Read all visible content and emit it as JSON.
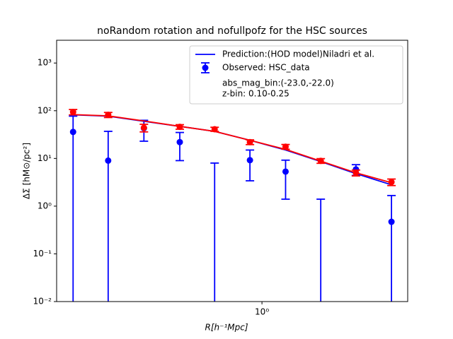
{
  "chart_data": {
    "type": "scatter",
    "title": "noRandom rotation and nofullpofz for the HSC sources",
    "x_label": "R[h⁻¹Mpc]",
    "y_label": "ΔΣ [hM⊙/pc²]",
    "x_scale": "log",
    "y_scale": "log",
    "xlim": [
      0.069,
      6.67
    ],
    "ylim": [
      0.01,
      3000
    ],
    "xticks": [
      {
        "value": 1,
        "label": "10⁰"
      }
    ],
    "yticks": [
      {
        "value": 0.01,
        "label": "10⁻²"
      },
      {
        "value": 0.1,
        "label": "10⁻¹"
      },
      {
        "value": 1,
        "label": "10⁰"
      },
      {
        "value": 10,
        "label": "10¹"
      },
      {
        "value": 100,
        "label": "10²"
      },
      {
        "value": 1000,
        "label": "10³"
      }
    ],
    "x": [
      0.0855,
      0.135,
      0.215,
      0.343,
      0.54,
      0.855,
      1.36,
      2.15,
      3.4,
      5.4
    ],
    "legend_position": "upper right",
    "annotations": [
      "abs_mag_bin:(-23.0,-22.0)",
      "z-bin: 0.10-0.25"
    ],
    "series": [
      {
        "name": "Prediction:(HOD model)Niladri et al.",
        "style": "line",
        "color": "#0000ff",
        "values": [
          82,
          77,
          60,
          47,
          37,
          24,
          15,
          8.6,
          4.8,
          2.8
        ]
      },
      {
        "name": "Observed: HSC_data",
        "style": "errorbar",
        "color": "#0000ff",
        "values": [
          36,
          9,
          43,
          22,
          -1,
          9.2,
          5.3,
          -1,
          5.9,
          0.47
        ],
        "errors": [
          41,
          28,
          20,
          13,
          9,
          5.8,
          3.9,
          2.4,
          1.5,
          1.2
        ]
      },
      {
        "style": "line",
        "color": "#ff0000",
        "values": [
          83,
          78,
          61,
          47,
          37,
          24,
          15.5,
          8.8,
          5.0,
          3.1
        ]
      },
      {
        "style": "errorbar",
        "color": "#ff0000",
        "values": [
          94,
          82,
          44,
          46,
          41,
          22,
          17.6,
          8.9,
          5.0,
          3.2
        ],
        "errors": [
          12,
          10,
          8,
          5,
          4,
          2.5,
          2,
          1,
          0.7,
          0.5
        ]
      }
    ]
  }
}
